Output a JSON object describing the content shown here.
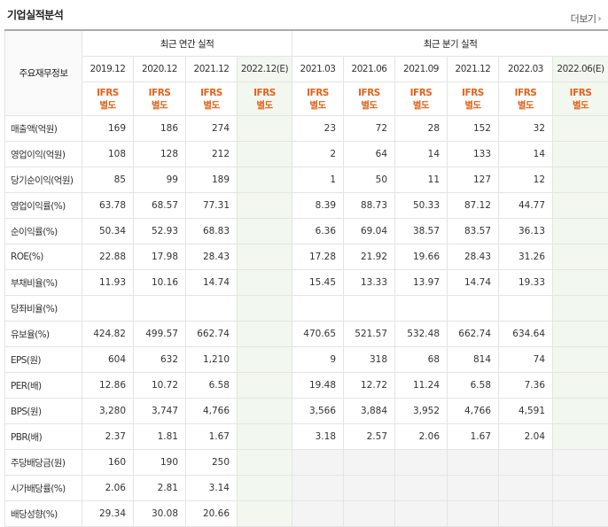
{
  "title": "기업실적분석",
  "more_label": "더보기",
  "header": {
    "corner": "주요재무정보",
    "annual_group": "최근 연간 실적",
    "quarter_group": "최근 분기 실적",
    "periods": [
      "2019.12",
      "2020.12",
      "2021.12",
      "2022.12(E)",
      "2021.03",
      "2021.06",
      "2021.09",
      "2021.12",
      "2022.03",
      "2022.06(E)"
    ],
    "ifrs_top": "IFRS",
    "ifrs_bottom": "별도"
  },
  "rows": [
    {
      "label": "매출액(억원)",
      "values": [
        "169",
        "186",
        "274",
        "",
        "23",
        "72",
        "28",
        "152",
        "32",
        ""
      ]
    },
    {
      "label": "영업이익(억원)",
      "values": [
        "108",
        "128",
        "212",
        "",
        "2",
        "64",
        "14",
        "133",
        "14",
        ""
      ]
    },
    {
      "label": "당기순이익(억원)",
      "values": [
        "85",
        "99",
        "189",
        "",
        "1",
        "50",
        "11",
        "127",
        "12",
        ""
      ]
    },
    {
      "label": "영업이익률(%)",
      "values": [
        "63.78",
        "68.57",
        "77.31",
        "",
        "8.39",
        "88.73",
        "50.33",
        "87.12",
        "44.77",
        ""
      ]
    },
    {
      "label": "순이익률(%)",
      "values": [
        "50.34",
        "52.93",
        "68.83",
        "",
        "6.36",
        "69.04",
        "38.57",
        "83.57",
        "36.13",
        ""
      ]
    },
    {
      "label": "ROE(%)",
      "values": [
        "22.88",
        "17.98",
        "28.43",
        "",
        "17.28",
        "21.92",
        "19.66",
        "28.43",
        "31.26",
        ""
      ]
    },
    {
      "label": "부채비율(%)",
      "values": [
        "11.93",
        "10.16",
        "14.74",
        "",
        "15.45",
        "13.33",
        "13.97",
        "14.74",
        "19.33",
        ""
      ]
    },
    {
      "label": "당좌비율(%)",
      "values": [
        "",
        "",
        "",
        "",
        "",
        "",
        "",
        "",
        "",
        ""
      ]
    },
    {
      "label": "유보율(%)",
      "values": [
        "424.82",
        "499.57",
        "662.74",
        "",
        "470.65",
        "521.57",
        "532.48",
        "662.74",
        "634.64",
        ""
      ]
    },
    {
      "label": "EPS(원)",
      "values": [
        "604",
        "632",
        "1,210",
        "",
        "9",
        "318",
        "68",
        "814",
        "74",
        ""
      ]
    },
    {
      "label": "PER(배)",
      "values": [
        "12.86",
        "10.72",
        "6.58",
        "",
        "19.48",
        "12.72",
        "11.24",
        "6.58",
        "7.36",
        ""
      ]
    },
    {
      "label": "BPS(원)",
      "values": [
        "3,280",
        "3,747",
        "4,766",
        "",
        "3,566",
        "3,884",
        "3,952",
        "4,766",
        "4,591",
        ""
      ]
    },
    {
      "label": "PBR(배)",
      "values": [
        "2.37",
        "1.81",
        "1.67",
        "",
        "3.18",
        "2.57",
        "2.06",
        "1.67",
        "2.04",
        ""
      ]
    },
    {
      "label": "주당배당금(원)",
      "values": [
        "160",
        "190",
        "250",
        "",
        "",
        "",
        "",
        "",
        "",
        ""
      ]
    },
    {
      "label": "시가배당률(%)",
      "values": [
        "2.06",
        "2.81",
        "3.14",
        "",
        "",
        "",
        "",
        "",
        "",
        ""
      ]
    },
    {
      "label": "배당성향(%)",
      "values": [
        "29.34",
        "30.08",
        "20.66",
        "",
        "",
        "",
        "",
        "",
        "",
        ""
      ]
    }
  ]
}
